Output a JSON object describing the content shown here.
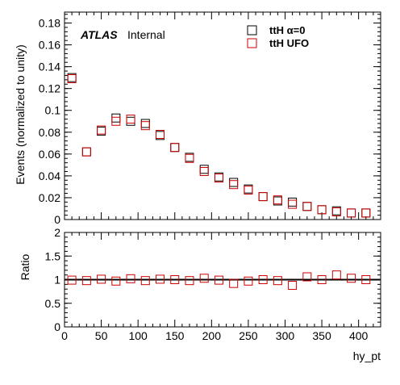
{
  "chart_data": [
    {
      "type": "scatter",
      "ylabel": "Events (normalized to unity)",
      "ylim": [
        0,
        0.19
      ],
      "xlim": [
        0,
        430
      ],
      "yticks": [
        0,
        0.02,
        0.04,
        0.06,
        0.08,
        0.1,
        0.12,
        0.14,
        0.16,
        0.18
      ],
      "ytick_labels": [
        "0",
        "0.02",
        "0.04",
        "0.06",
        "0.08",
        "0.1",
        "0.12",
        "0.14",
        "0.16",
        "0.18"
      ],
      "label_main": "ATLAS",
      "label_sub": "Internal",
      "legend_position": "top-right",
      "series": [
        {
          "name": "ttH α=0",
          "color": "#000000",
          "x": [
            10,
            30,
            50,
            70,
            90,
            110,
            130,
            150,
            170,
            190,
            210,
            230,
            250,
            270,
            290,
            310,
            330,
            350,
            370,
            390,
            410
          ],
          "y": [
            0.13,
            0.062,
            0.081,
            0.093,
            0.09,
            0.088,
            0.077,
            0.066,
            0.057,
            0.046,
            0.039,
            0.034,
            0.028,
            0.021,
            0.017,
            0.016,
            0.012,
            0.009,
            0.008,
            0.006,
            0.006
          ]
        },
        {
          "name": "ttH UFO",
          "color": "#cc0000",
          "x": [
            10,
            30,
            50,
            70,
            90,
            110,
            130,
            150,
            170,
            190,
            210,
            230,
            250,
            270,
            290,
            310,
            330,
            350,
            370,
            390,
            410
          ],
          "y": [
            0.129,
            0.062,
            0.082,
            0.09,
            0.092,
            0.086,
            0.078,
            0.066,
            0.056,
            0.044,
            0.038,
            0.032,
            0.027,
            0.021,
            0.018,
            0.014,
            0.012,
            0.009,
            0.007,
            0.006,
            0.006
          ]
        }
      ]
    },
    {
      "type": "scatter",
      "ylabel": "Ratio",
      "xlabel": "hy_pt",
      "ylim": [
        0,
        2
      ],
      "xlim": [
        0,
        430
      ],
      "yticks": [
        0,
        0.5,
        1,
        1.5,
        2
      ],
      "ytick_labels": [
        "0",
        "0.5",
        "1",
        "1.5",
        "2"
      ],
      "xticks": [
        0,
        50,
        100,
        150,
        200,
        250,
        300,
        350,
        400
      ],
      "xtick_labels": [
        "0",
        "50",
        "100",
        "150",
        "200",
        "250",
        "300",
        "350",
        "400"
      ],
      "reference_line": 1,
      "series": [
        {
          "color": "#cc0000",
          "x": [
            10,
            30,
            50,
            70,
            90,
            110,
            130,
            150,
            170,
            190,
            210,
            230,
            250,
            270,
            290,
            310,
            330,
            350,
            370,
            390,
            410
          ],
          "y": [
            0.99,
            0.98,
            1.01,
            0.97,
            1.02,
            0.98,
            1.01,
            1.0,
            0.98,
            1.03,
            0.99,
            0.92,
            0.97,
            1.0,
            0.98,
            0.88,
            1.06,
            1.0,
            1.1,
            1.03,
            1.0
          ]
        }
      ]
    }
  ]
}
